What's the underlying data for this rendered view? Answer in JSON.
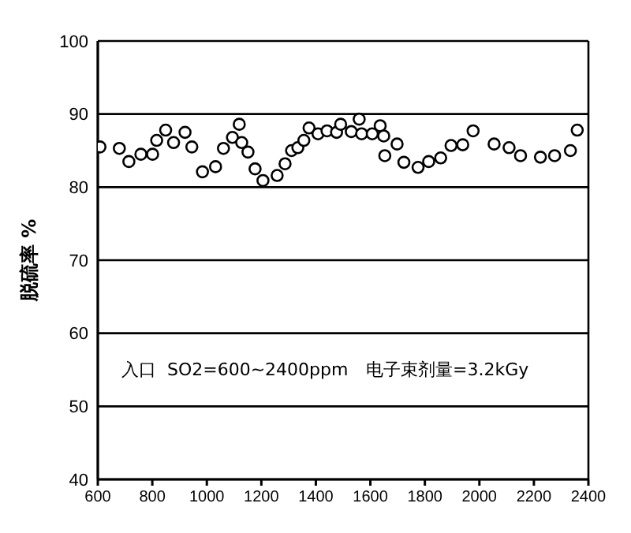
{
  "chart_data": {
    "type": "scatter",
    "ylabel": "脱硫率 %",
    "x": [
      608,
      679,
      714,
      758,
      801,
      816,
      849,
      878,
      920,
      945,
      984,
      1032,
      1061,
      1094,
      1119,
      1128,
      1151,
      1177,
      1206,
      1258,
      1287,
      1311,
      1334,
      1356,
      1375,
      1408,
      1441,
      1476,
      1491,
      1530,
      1559,
      1568,
      1607,
      1636,
      1649,
      1653,
      1698,
      1723,
      1775,
      1814,
      1858,
      1896,
      1939,
      1977,
      2054,
      2109,
      2151,
      2224,
      2276,
      2334,
      2359
    ],
    "series": [
      {
        "color": "#000000",
        "values": [
          85.5,
          85.3,
          83.5,
          84.5,
          84.5,
          86.4,
          87.8,
          86.1,
          87.5,
          85.5,
          82.1,
          82.8,
          85.3,
          86.8,
          88.6,
          86.1,
          84.8,
          82.5,
          80.9,
          81.6,
          83.2,
          85.0,
          85.4,
          86.4,
          88.1,
          87.3,
          87.7,
          87.5,
          88.6,
          87.6,
          89.3,
          87.3,
          87.3,
          88.4,
          87.0,
          84.3,
          85.9,
          83.4,
          82.7,
          83.5,
          84.0,
          85.7,
          85.8,
          87.7,
          85.9,
          85.4,
          84.3,
          84.1,
          84.3,
          85.0,
          87.8
        ]
      }
    ],
    "xlim": [
      600,
      2400
    ],
    "xticks": [
      600,
      800,
      1000,
      1200,
      1400,
      1600,
      1800,
      2000,
      2200,
      2400
    ],
    "ylim": [
      40,
      100
    ],
    "yticks": [
      40,
      50,
      60,
      70,
      80,
      90,
      100
    ],
    "grid": "y",
    "marker": "circle",
    "annotations": [
      "入口  SO2=600~2400ppm",
      "电子束剂量=3.2kGy"
    ]
  }
}
